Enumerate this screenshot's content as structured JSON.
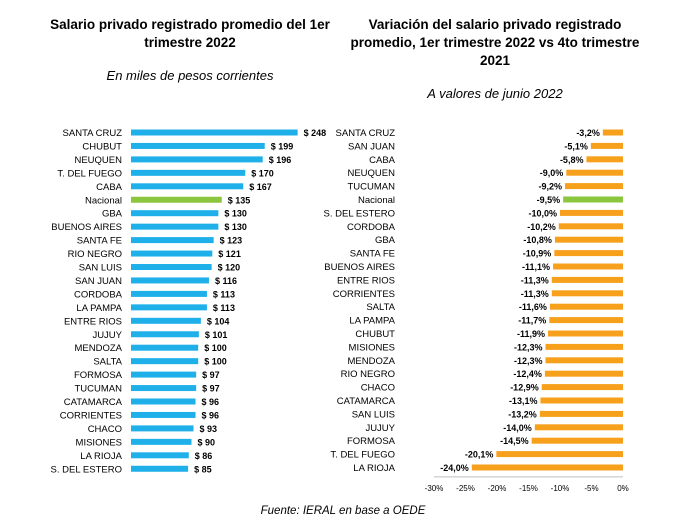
{
  "colors": {
    "left_bar": "#1fb0ea",
    "highlight": "#8cc63f",
    "right_bar": "#f7a01c"
  },
  "chart_data": [
    {
      "type": "bar",
      "orientation": "horizontal",
      "title": "Salario privado registrado promedio del 1er trimestre 2022",
      "subtitle": "En miles de pesos corrientes",
      "highlight_category": "Nacional",
      "categories": [
        "SANTA CRUZ",
        "CHUBUT",
        "NEUQUEN",
        "T. DEL FUEGO",
        "CABA",
        "Nacional",
        "GBA",
        "BUENOS AIRES",
        "SANTA FE",
        "RIO NEGRO",
        "SAN LUIS",
        "SAN JUAN",
        "CORDOBA",
        "LA PAMPA",
        "ENTRE RIOS",
        "JUJUY",
        "MENDOZA",
        "SALTA",
        "FORMOSA",
        "TUCUMAN",
        "CATAMARCA",
        "CORRIENTES",
        "CHACO",
        "MISIONES",
        "LA RIOJA",
        "S. DEL ESTERO"
      ],
      "values": [
        248,
        199,
        196,
        170,
        167,
        135,
        130,
        130,
        123,
        121,
        120,
        116,
        113,
        113,
        104,
        101,
        100,
        100,
        97,
        97,
        96,
        96,
        93,
        90,
        86,
        85
      ],
      "value_labels": [
        "$ 248",
        "$ 199",
        "$ 196",
        "$ 170",
        "$ 167",
        "$ 135",
        "$ 130",
        "$ 130",
        "$ 123",
        "$ 121",
        "$ 120",
        "$ 116",
        "$ 113",
        "$ 113",
        "$ 104",
        "$ 101",
        "$ 100",
        "$ 100",
        "$ 97",
        "$ 97",
        "$ 96",
        "$ 96",
        "$ 93",
        "$ 90",
        "$ 86",
        "$ 85"
      ]
    },
    {
      "type": "bar",
      "orientation": "horizontal",
      "title": "Variación del salario privado registrado promedio, 1er trimestre 2022 vs 4to trimestre 2021",
      "subtitle": "A valores de junio 2022",
      "highlight_category": "Nacional",
      "categories": [
        "SANTA CRUZ",
        "SAN JUAN",
        "CABA",
        "NEUQUEN",
        "TUCUMAN",
        "Nacional",
        "S. DEL ESTERO",
        "CORDOBA",
        "GBA",
        "SANTA FE",
        "BUENOS AIRES",
        "ENTRE RIOS",
        "CORRIENTES",
        "SALTA",
        "LA PAMPA",
        "CHUBUT",
        "MISIONES",
        "MENDOZA",
        "RIO NEGRO",
        "CHACO",
        "CATAMARCA",
        "SAN LUIS",
        "JUJUY",
        "FORMOSA",
        "T. DEL FUEGO",
        "LA RIOJA"
      ],
      "values": [
        -3.2,
        -5.1,
        -5.8,
        -9.0,
        -9.2,
        -9.5,
        -10.0,
        -10.2,
        -10.8,
        -10.9,
        -11.1,
        -11.3,
        -11.3,
        -11.6,
        -11.7,
        -11.9,
        -12.3,
        -12.3,
        -12.4,
        -12.9,
        -13.1,
        -13.2,
        -14.0,
        -14.5,
        -20.1,
        -24.0
      ],
      "value_labels": [
        "-3,2%",
        "-5,1%",
        "-5,8%",
        "-9,0%",
        "-9,2%",
        "-9,5%",
        "-10,0%",
        "-10,2%",
        "-10,8%",
        "-10,9%",
        "-11,1%",
        "-11,3%",
        "-11,3%",
        "-11,6%",
        "-11,7%",
        "-11,9%",
        "-12,3%",
        "-12,3%",
        "-12,4%",
        "-12,9%",
        "-13,1%",
        "-13,2%",
        "-14,0%",
        "-14,5%",
        "-20,1%",
        "-24,0%"
      ],
      "xlim": [
        -30,
        0
      ],
      "x_ticks": [
        -30,
        -25,
        -20,
        -15,
        -10,
        -5,
        0
      ],
      "x_tick_labels": [
        "-30%",
        "-25%",
        "-20%",
        "-15%",
        "-10%",
        "-5%",
        "0%"
      ]
    }
  ],
  "source": "Fuente: IERAL en base a OEDE"
}
